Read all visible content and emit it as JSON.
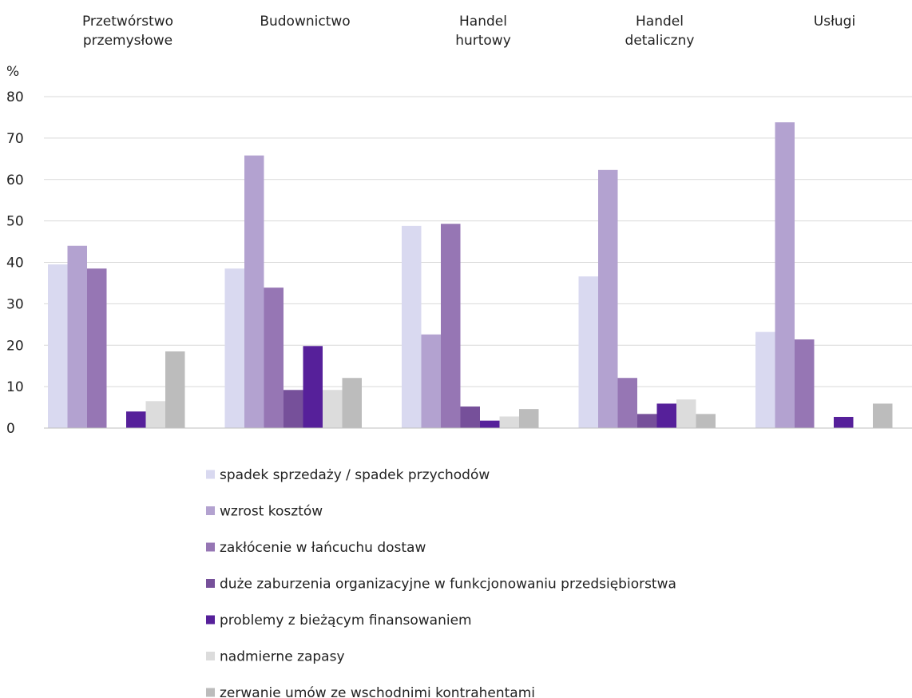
{
  "chart_data": {
    "type": "bar",
    "unit_label": "%",
    "ylim": [
      0,
      80
    ],
    "yticks": [
      0,
      10,
      20,
      30,
      40,
      50,
      60,
      70,
      80
    ],
    "grid": true,
    "legend_position": "bottom",
    "categories": [
      [
        "Przetwórstwo",
        "przemysłowe"
      ],
      [
        "Budownictwo"
      ],
      [
        "Handel",
        "hurtowy"
      ],
      [
        "Handel",
        "detaliczny"
      ],
      [
        "Usługi"
      ]
    ],
    "series": [
      {
        "name": "spadek sprzedaży / spadek przychodów",
        "color": "#d9d9f0",
        "values": [
          39.5,
          38.5,
          48.8,
          36.6,
          23.2
        ]
      },
      {
        "name": "wzrost kosztów",
        "color": "#b3a2d0",
        "values": [
          44.0,
          65.8,
          22.6,
          62.3,
          73.8
        ]
      },
      {
        "name": "zakłócenie w łańcuchu dostaw",
        "color": "#9676b4",
        "values": [
          38.5,
          33.9,
          49.3,
          12.1,
          21.4
        ]
      },
      {
        "name": "duże zaburzenia organizacyjne w funkcjonowaniu przedsiębiorstwa",
        "color": "#76509a",
        "values": [
          0,
          9.2,
          5.2,
          3.4,
          0
        ]
      },
      {
        "name": "problemy z bieżącym finansowaniem",
        "color": "#56209a",
        "values": [
          4.0,
          19.8,
          1.8,
          5.9,
          2.7
        ]
      },
      {
        "name": "nadmierne zapasy",
        "color": "#dcdcdc",
        "values": [
          6.5,
          9.2,
          2.8,
          6.9,
          0
        ]
      },
      {
        "name": "zerwanie umów ze wschodnimi kontrahentami",
        "color": "#bcbcbc",
        "values": [
          18.5,
          12.1,
          4.6,
          3.4,
          5.9
        ]
      }
    ]
  }
}
